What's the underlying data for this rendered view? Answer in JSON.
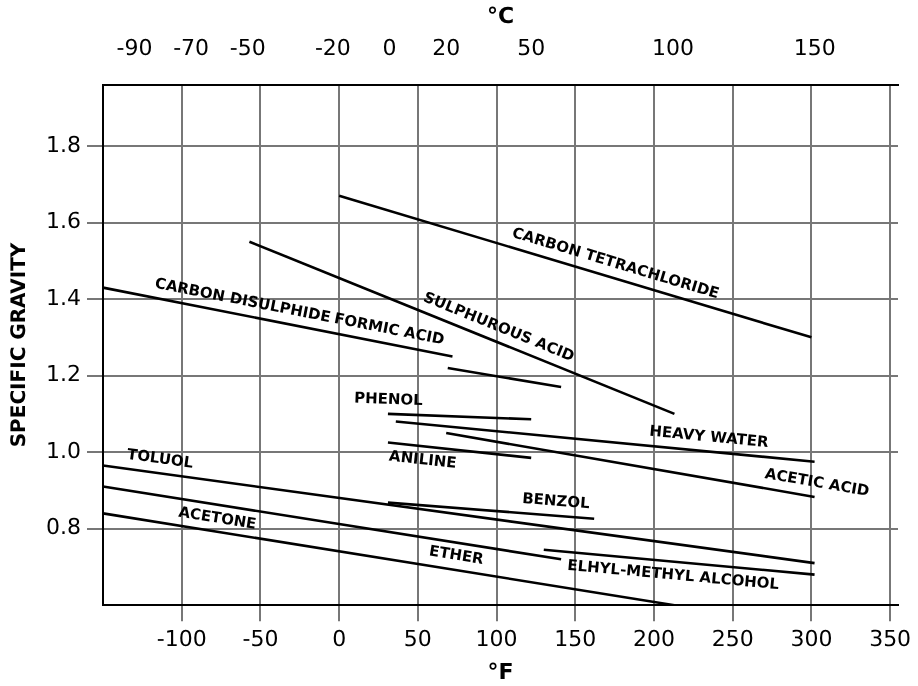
{
  "chart_data": {
    "type": "line",
    "xlabel": "°F",
    "x2label": "°C",
    "ylabel": "SPECIFIC GRAVITY",
    "xlim": [
      -150,
      355
    ],
    "xticks": [
      -100,
      -50,
      0,
      50,
      100,
      150,
      200,
      250,
      300,
      350
    ],
    "x2lim": [
      -101.1,
      179.4
    ],
    "x2ticks": [
      -90,
      -70,
      -50,
      -20,
      0,
      20,
      50,
      100,
      150
    ],
    "ylim": [
      0.6,
      1.96
    ],
    "yticks": [
      0.8,
      {
        "value": 1.0,
        "label": "1.0"
      },
      1.2,
      1.4,
      1.6,
      1.8
    ],
    "grid": true,
    "series": [
      {
        "color": "#000000",
        "x": [
          0,
          300
        ],
        "values": [
          1.67,
          1.3
        ]
      },
      {
        "color": "#000000",
        "x": [
          -57,
          213
        ],
        "values": [
          1.55,
          1.1
        ]
      },
      {
        "color": "#000000",
        "x": [
          -150,
          72
        ],
        "values": [
          1.43,
          1.25
        ]
      },
      {
        "color": "#000000",
        "x": [
          69,
          141
        ],
        "values": [
          1.22,
          1.17
        ]
      },
      {
        "color": "#000000",
        "x": [
          31,
          122
        ],
        "values": [
          1.1,
          1.086
        ]
      },
      {
        "color": "#000000",
        "x": [
          36,
          302
        ],
        "values": [
          1.08,
          0.975
        ]
      },
      {
        "color": "#000000",
        "x": [
          68,
          302
        ],
        "values": [
          1.05,
          0.883
        ]
      },
      {
        "color": "#000000",
        "x": [
          31,
          122
        ],
        "values": [
          1.025,
          0.985
        ]
      },
      {
        "color": "#000000",
        "x": [
          -150,
          302
        ],
        "values": [
          0.965,
          0.71
        ]
      },
      {
        "color": "#000000",
        "x": [
          -150,
          141
        ],
        "values": [
          0.91,
          0.72
        ]
      },
      {
        "color": "#000000",
        "x": [
          31,
          162
        ],
        "values": [
          0.868,
          0.826
        ]
      },
      {
        "color": "#000000",
        "x": [
          130,
          302
        ],
        "values": [
          0.745,
          0.68
        ]
      },
      {
        "color": "#000000",
        "x": [
          -150,
          213
        ],
        "values": [
          0.84,
          0.6
        ]
      }
    ],
    "annotations": [
      {
        "text": "CARBON TETRACHLORIDE",
        "x": 173,
        "y": 1.457
      },
      {
        "text": "SULPHUROUS ACID",
        "x": 98,
        "y": 1.292
      },
      {
        "text": "CARBON DISULPHIDE",
        "x": -63,
        "y": 1.359
      },
      {
        "text": "FORMIC ACID",
        "x": 30,
        "y": 1.284
      },
      {
        "text": "PHENOL",
        "x": 31,
        "y": 1.1
      },
      {
        "text": "HEAVY WATER",
        "x": 234,
        "y": 1.002
      },
      {
        "text": "ACETIC ACID",
        "x": 302,
        "y": 0.883
      },
      {
        "text": "ANILINE",
        "x": 54,
        "y": 1.015
      },
      {
        "text": "TOLUOL",
        "x": -115,
        "y": 0.945
      },
      {
        "text": "ACETONE",
        "x": -76,
        "y": 0.862
      },
      {
        "text": "BENZOL",
        "x": 137,
        "y": 0.834
      },
      {
        "text": "ELHYL-METHYL ALCOHOL",
        "x": 213,
        "y": 0.714
      },
      {
        "text": "ETHER",
        "x": 73,
        "y": 0.693
      }
    ]
  }
}
